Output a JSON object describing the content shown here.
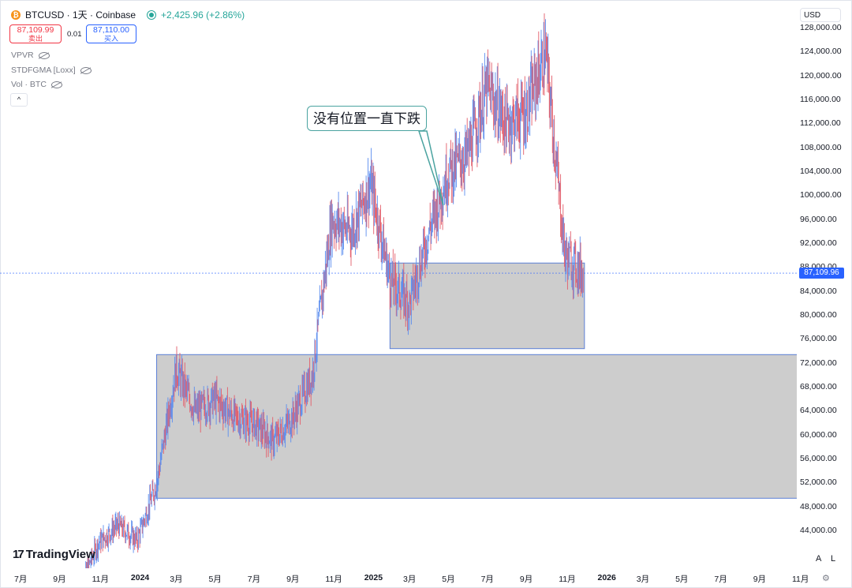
{
  "header": {
    "symbol_line": "BTCUSD · 1天 · Coinbase",
    "coin_glyph": "₿",
    "change_text": "+2,425.96 (+2.86%)",
    "sell_price": "87,109.99",
    "sell_label": "卖出",
    "spread": "0.01",
    "buy_price": "87,110.00",
    "buy_label": "买入"
  },
  "indicators": [
    {
      "label": "VPVR",
      "icon": "eye-off-icon"
    },
    {
      "label": "STDFGMA [Loxx]",
      "icon": "eye-off-icon"
    },
    {
      "label": "Vol · BTC",
      "icon": "eye-off-icon"
    }
  ],
  "collapse_glyph": "^",
  "currency": "USD",
  "current_price_tag": "87,109.96",
  "annotation": "没有位置一直下跌",
  "branding": {
    "logo_text": "TradingView",
    "logo_mark": "17"
  },
  "controls": {
    "auto": "A",
    "log": "L",
    "settings_glyph": "⚙"
  },
  "colors": {
    "up": "#5b8def",
    "down": "#e35d6a",
    "zone_fill": "#c8c8c8",
    "zone_border": "#5b7fd6",
    "price_line": "#2962ff"
  },
  "chart_data": {
    "type": "candlestick",
    "title": "BTCUSD · 1天 · Coinbase",
    "y_ticks": [
      "128,000.00",
      "124,000.00",
      "120,000.00",
      "116,000.00",
      "112,000.00",
      "108,000.00",
      "104,000.00",
      "100,000.00",
      "96,000.00",
      "92,000.00",
      "88,000.00",
      "84,000.00",
      "80,000.00",
      "76,000.00",
      "72,000.00",
      "68,000.00",
      "64,000.00",
      "60,000.00",
      "56,000.00",
      "52,000.00",
      "48,000.00",
      "44,000.00"
    ],
    "x_ticks": [
      "7月",
      "9月",
      "11月",
      "2024",
      "3月",
      "5月",
      "7月",
      "9月",
      "11月",
      "2025",
      "3月",
      "5月",
      "7月",
      "9月",
      "11月",
      "2026",
      "3月",
      "5月",
      "7月",
      "9月",
      "11月"
    ],
    "x_ticks_bold": [
      "2024",
      "2025",
      "2026"
    ],
    "ylim": [
      41000,
      129000
    ],
    "current_price": 87109.96,
    "series": [
      {
        "date": "2023-10",
        "value": 34500
      },
      {
        "date": "2023-11",
        "value": 42000
      },
      {
        "date": "2023-12",
        "value": 45000
      },
      {
        "date": "2024-01",
        "value": 42500
      },
      {
        "date": "2024-02",
        "value": 52000
      },
      {
        "date": "2024-03",
        "value": 71000
      },
      {
        "date": "2024-04",
        "value": 64000
      },
      {
        "date": "2024-05",
        "value": 66000
      },
      {
        "date": "2024-06",
        "value": 63000
      },
      {
        "date": "2024-07",
        "value": 62000
      },
      {
        "date": "2024-08",
        "value": 59000
      },
      {
        "date": "2024-09",
        "value": 63000
      },
      {
        "date": "2024-10",
        "value": 70000
      },
      {
        "date": "2024-11",
        "value": 96000
      },
      {
        "date": "2024-12",
        "value": 94000
      },
      {
        "date": "2025-01",
        "value": 102000
      },
      {
        "date": "2025-02",
        "value": 86000
      },
      {
        "date": "2025-03",
        "value": 82000
      },
      {
        "date": "2025-04",
        "value": 94000
      },
      {
        "date": "2025-05",
        "value": 104000
      },
      {
        "date": "2025-06",
        "value": 107000
      },
      {
        "date": "2025-07",
        "value": 118000
      },
      {
        "date": "2025-08",
        "value": 112000
      },
      {
        "date": "2025-09",
        "value": 114000
      },
      {
        "date": "2025-10",
        "value": 124000
      },
      {
        "date": "2025-11",
        "value": 90000
      },
      {
        "date": "2025-11-30",
        "value": 87110
      }
    ],
    "zones": [
      {
        "name": "lower-zone",
        "x_start": "2024-02",
        "x_end": "2026-11",
        "y_low": 49500,
        "y_high": 73500
      },
      {
        "name": "upper-zone",
        "x_start": "2025-02",
        "x_end": "2025-12",
        "y_low": 74500,
        "y_high": 88800
      }
    ]
  }
}
